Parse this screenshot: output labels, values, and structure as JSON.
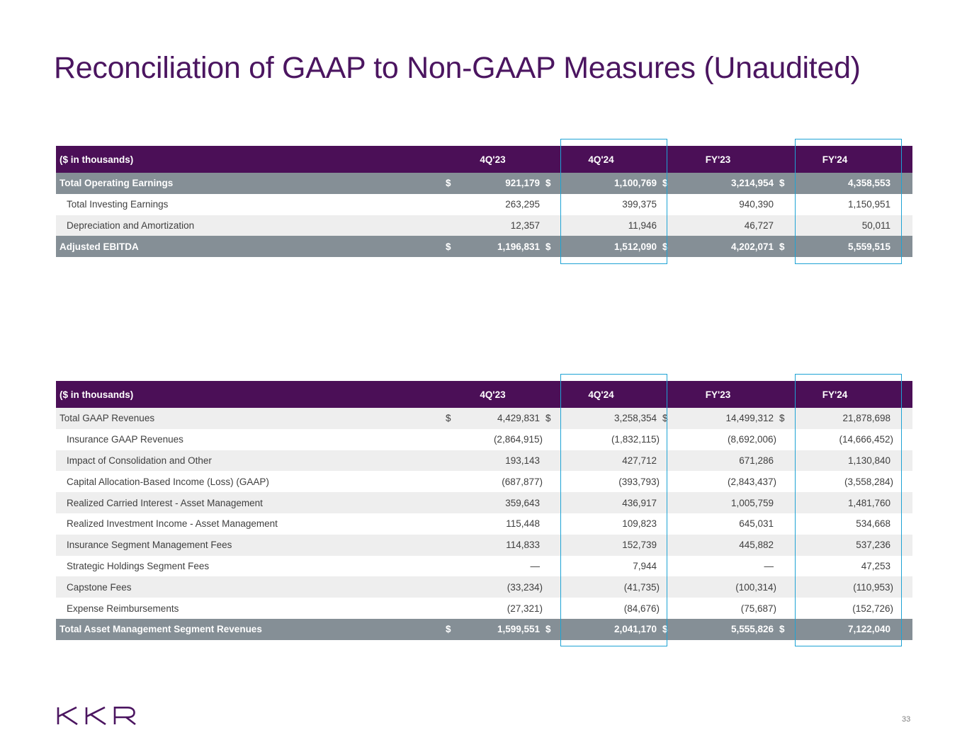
{
  "title": "Reconciliation of GAAP to Non-GAAP Measures (Unaudited)",
  "table1": {
    "headers": [
      "($ in thousands)",
      "4Q'23",
      "4Q'24",
      "FY'23",
      "FY'24"
    ],
    "rows": [
      {
        "label": "Total Operating Earnings",
        "dollar": "$",
        "values": [
          "921,179",
          "1,100,769",
          "3,214,954",
          "4,358,553"
        ]
      },
      {
        "label": "Total Investing Earnings",
        "dollar": "",
        "values": [
          "263,295",
          "399,375",
          "940,390",
          "1,150,951"
        ]
      },
      {
        "label": "Depreciation and Amortization",
        "dollar": "",
        "values": [
          "12,357",
          "11,946",
          "46,727",
          "50,011"
        ]
      },
      {
        "label": "Adjusted EBITDA",
        "dollar": "$",
        "values": [
          "1,196,831",
          "1,512,090",
          "4,202,071",
          "5,559,515"
        ]
      }
    ]
  },
  "table2": {
    "headers": [
      "($ in thousands)",
      "4Q'23",
      "4Q'24",
      "FY'23",
      "FY'24"
    ],
    "rows": [
      {
        "label": "Total GAAP Revenues",
        "dollar": "$",
        "values": [
          "4,429,831",
          "3,258,354",
          "14,499,312",
          "21,878,698"
        ]
      },
      {
        "label": "Insurance GAAP Revenues",
        "dollar": "",
        "values": [
          "(2,864,915)",
          "(1,832,115)",
          "(8,692,006)",
          "(14,666,452)"
        ]
      },
      {
        "label": "Impact of Consolidation and Other",
        "dollar": "",
        "values": [
          "193,143",
          "427,712",
          "671,286",
          "1,130,840"
        ]
      },
      {
        "label": "Capital Allocation-Based Income (Loss) (GAAP)",
        "dollar": "",
        "values": [
          "(687,877)",
          "(393,793)",
          "(2,843,437)",
          "(3,558,284)"
        ]
      },
      {
        "label": "Realized Carried Interest - Asset Management",
        "dollar": "",
        "values": [
          "359,643",
          "436,917",
          "1,005,759",
          "1,481,760"
        ]
      },
      {
        "label": "Realized Investment Income - Asset Management",
        "dollar": "",
        "values": [
          "115,448",
          "109,823",
          "645,031",
          "534,668"
        ]
      },
      {
        "label": "Insurance Segment Management Fees",
        "dollar": "",
        "values": [
          "114,833",
          "152,739",
          "445,882",
          "537,236"
        ]
      },
      {
        "label": "Strategic Holdings Segment Fees",
        "dollar": "",
        "values": [
          "—",
          "7,944",
          "—",
          "47,253"
        ]
      },
      {
        "label": "Capstone Fees",
        "dollar": "",
        "values": [
          "(33,234)",
          "(41,735)",
          "(100,314)",
          "(110,953)"
        ]
      },
      {
        "label": "Expense Reimbursements",
        "dollar": "",
        "values": [
          "(27,321)",
          "(84,676)",
          "(75,687)",
          "(152,726)"
        ]
      },
      {
        "label": "Total Asset Management Segment Revenues",
        "dollar": "$",
        "values": [
          "1,599,551",
          "2,041,170",
          "5,555,826",
          "7,122,040"
        ]
      }
    ]
  },
  "logo_text": "KKR",
  "page_number": "33",
  "colors": {
    "title": "#4b1560",
    "header_bg": "#4b0f57",
    "total_bg": "#858f96",
    "shade_bg": "#eeeeee",
    "highlight_border": "#1ea3d4"
  }
}
